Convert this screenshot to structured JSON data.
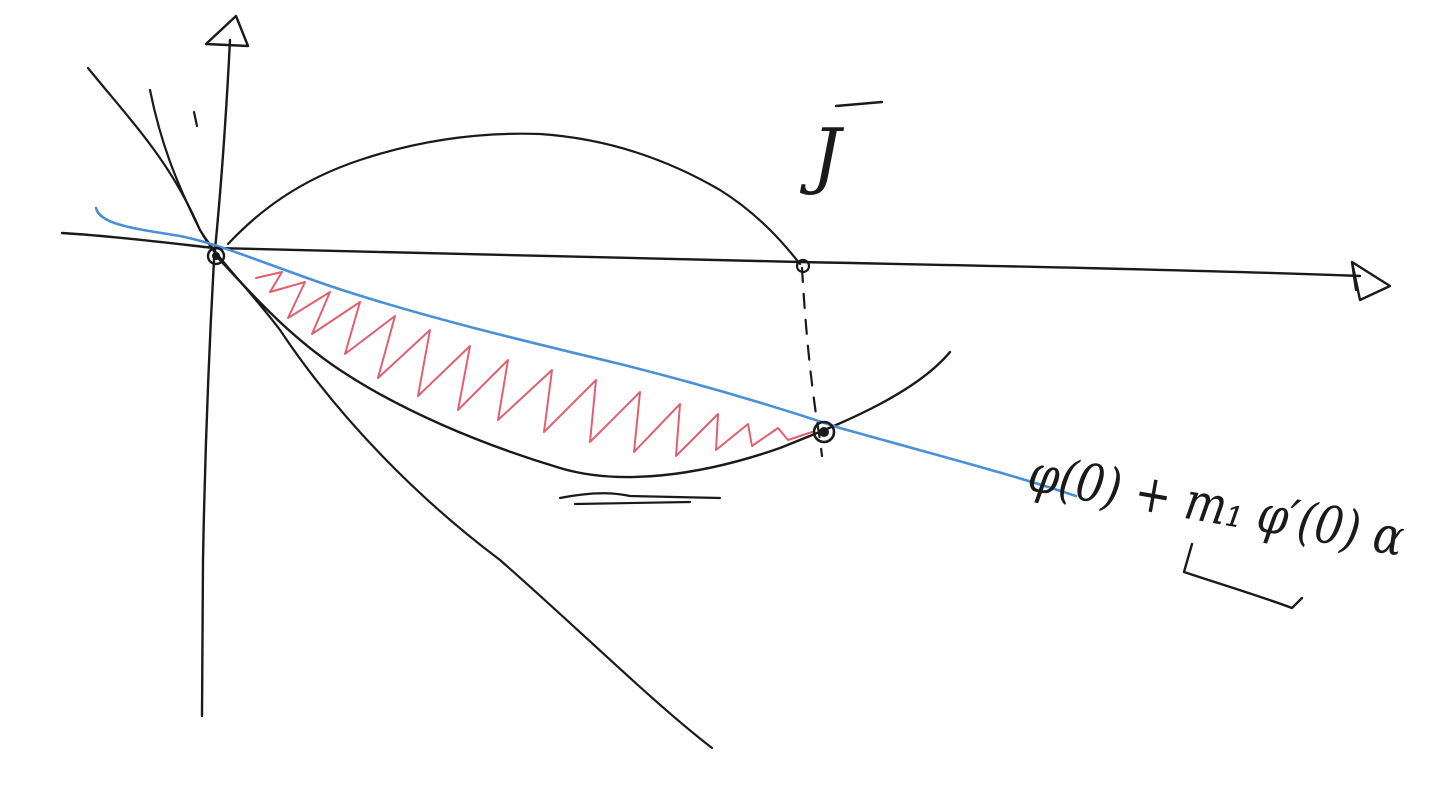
{
  "labels": {
    "function_name": "J",
    "tangent_expression": "φ(0) + m₁ φ′(0) α"
  },
  "colors": {
    "ink": "#1a1a1a",
    "tangent": "#4a90d9",
    "hatch": "#e06070"
  },
  "icons": {
    "y_axis_arrow": "arrow-up-icon",
    "x_axis_arrow": "arrow-right-icon"
  }
}
